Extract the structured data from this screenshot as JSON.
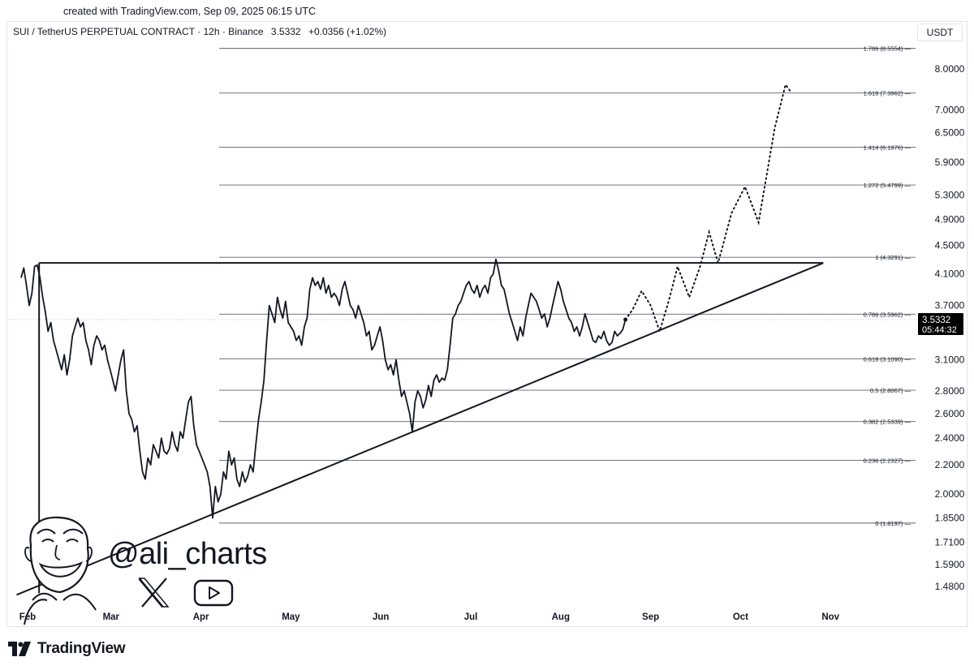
{
  "header": {
    "created_text": "created with TradingView.com, Sep 09, 2025 06:15 UTC",
    "symbol": "SUI / TetherUS PERPETUAL CONTRACT · 12h · Binance",
    "last_price": "3.5332",
    "change": "+0.0356 (+1.02%)",
    "currency": "USDT"
  },
  "watermark": {
    "handle": "@ali_charts",
    "icons": [
      "avatar-caricature",
      "x-logo-icon",
      "youtube-icon"
    ]
  },
  "footer": {
    "brand": "TradingView"
  },
  "chart_data": {
    "type": "line",
    "title": "",
    "y_scale": "log",
    "ylim": [
      1.4,
      9.1
    ],
    "x_axis_labels": [
      "Feb",
      "Mar",
      "Apr",
      "May",
      "Jun",
      "Jul",
      "Aug",
      "Sep",
      "Oct",
      "Nov"
    ],
    "y_tick_labels": [
      "8.0000",
      "7.0000",
      "6.5000",
      "5.9000",
      "5.3000",
      "4.9000",
      "4.5000",
      "4.1000",
      "3.7000",
      "3.1000",
      "2.8000",
      "2.6000",
      "2.4000",
      "2.2000",
      "2.0000",
      "1.8500",
      "1.7100",
      "1.5900",
      "1.4800"
    ],
    "price_label": {
      "value": "3.5332",
      "countdown": "05:44:32"
    },
    "fib_levels": [
      {
        "ratio": "1.786",
        "price": 8.5554,
        "label": "1.786 (8.5554)"
      },
      {
        "ratio": "1.618",
        "price": 7.3962,
        "label": "1.618 (7.3962)"
      },
      {
        "ratio": "1.414",
        "price": 6.1976,
        "label": "1.414 (6.1976)"
      },
      {
        "ratio": "1.272",
        "price": 5.4799,
        "label": "1.272 (5.4799)"
      },
      {
        "ratio": "1",
        "price": 4.3291,
        "label": "1 (4.3291)"
      },
      {
        "ratio": "0.786",
        "price": 3.5962,
        "label": "0.786 (3.5962)"
      },
      {
        "ratio": "0.618",
        "price": 3.109,
        "label": "0.618 (3.1090)"
      },
      {
        "ratio": "0.5",
        "price": 2.8067,
        "label": "0.5 (2.8067)"
      },
      {
        "ratio": "0.382",
        "price": 2.5339,
        "label": "0.382 (2.5339)"
      },
      {
        "ratio": "0.236",
        "price": 2.2327,
        "label": "0.236 (2.2327)"
      },
      {
        "ratio": "0",
        "price": 1.8197,
        "label": "0 (1.8197)"
      }
    ],
    "month_positions": {
      "Feb": 0.2,
      "Mar": 1.0,
      "Apr": 2.0,
      "May": 3.0,
      "Jun": 4.0,
      "Jul": 5.0,
      "Aug": 6.0,
      "Sep": 7.0,
      "Oct": 8.0,
      "Nov": 9.0
    },
    "price_series": [
      [
        0.0,
        4.05
      ],
      [
        0.03,
        4.18
      ],
      [
        0.06,
        3.95
      ],
      [
        0.09,
        3.7
      ],
      [
        0.12,
        3.85
      ],
      [
        0.15,
        4.2
      ],
      [
        0.18,
        4.22
      ],
      [
        0.21,
        4.05
      ],
      [
        0.24,
        3.8
      ],
      [
        0.27,
        3.62
      ],
      [
        0.3,
        3.4
      ],
      [
        0.33,
        3.5
      ],
      [
        0.36,
        3.3
      ],
      [
        0.39,
        3.2
      ],
      [
        0.42,
        3.1
      ],
      [
        0.45,
        3.0
      ],
      [
        0.48,
        3.15
      ],
      [
        0.51,
        2.95
      ],
      [
        0.54,
        3.1
      ],
      [
        0.57,
        3.35
      ],
      [
        0.6,
        3.45
      ],
      [
        0.63,
        3.55
      ],
      [
        0.66,
        3.45
      ],
      [
        0.69,
        3.5
      ],
      [
        0.72,
        3.3
      ],
      [
        0.75,
        3.2
      ],
      [
        0.78,
        3.05
      ],
      [
        0.81,
        3.25
      ],
      [
        0.84,
        3.35
      ],
      [
        0.87,
        3.3
      ],
      [
        0.9,
        3.2
      ],
      [
        0.93,
        3.25
      ],
      [
        0.96,
        3.1
      ],
      [
        0.99,
        3.0
      ],
      [
        1.02,
        2.9
      ],
      [
        1.05,
        2.8
      ],
      [
        1.08,
        2.95
      ],
      [
        1.11,
        3.1
      ],
      [
        1.14,
        3.2
      ],
      [
        1.17,
        2.8
      ],
      [
        1.2,
        2.6
      ],
      [
        1.23,
        2.55
      ],
      [
        1.26,
        2.45
      ],
      [
        1.29,
        2.5
      ],
      [
        1.32,
        2.3
      ],
      [
        1.35,
        2.15
      ],
      [
        1.38,
        2.1
      ],
      [
        1.41,
        2.25
      ],
      [
        1.44,
        2.2
      ],
      [
        1.47,
        2.35
      ],
      [
        1.5,
        2.3
      ],
      [
        1.53,
        2.25
      ],
      [
        1.56,
        2.4
      ],
      [
        1.59,
        2.3
      ],
      [
        1.62,
        2.28
      ],
      [
        1.65,
        2.32
      ],
      [
        1.68,
        2.45
      ],
      [
        1.71,
        2.35
      ],
      [
        1.74,
        2.3
      ],
      [
        1.77,
        2.45
      ],
      [
        1.8,
        2.4
      ],
      [
        1.83,
        2.55
      ],
      [
        1.86,
        2.7
      ],
      [
        1.89,
        2.75
      ],
      [
        1.92,
        2.5
      ],
      [
        1.95,
        2.35
      ],
      [
        1.98,
        2.3
      ],
      [
        2.01,
        2.25
      ],
      [
        2.04,
        2.2
      ],
      [
        2.07,
        2.15
      ],
      [
        2.1,
        2.05
      ],
      [
        2.13,
        1.85
      ],
      [
        2.16,
        2.05
      ],
      [
        2.19,
        1.95
      ],
      [
        2.22,
        2.0
      ],
      [
        2.25,
        2.15
      ],
      [
        2.28,
        2.1
      ],
      [
        2.31,
        2.3
      ],
      [
        2.34,
        2.2
      ],
      [
        2.37,
        2.25
      ],
      [
        2.4,
        2.1
      ],
      [
        2.43,
        2.05
      ],
      [
        2.46,
        2.15
      ],
      [
        2.49,
        2.08
      ],
      [
        2.52,
        2.12
      ],
      [
        2.55,
        2.2
      ],
      [
        2.58,
        2.15
      ],
      [
        2.61,
        2.35
      ],
      [
        2.64,
        2.55
      ],
      [
        2.67,
        2.7
      ],
      [
        2.7,
        2.9
      ],
      [
        2.73,
        3.3
      ],
      [
        2.76,
        3.7
      ],
      [
        2.79,
        3.6
      ],
      [
        2.82,
        3.5
      ],
      [
        2.85,
        3.8
      ],
      [
        2.88,
        3.65
      ],
      [
        2.91,
        3.55
      ],
      [
        2.94,
        3.75
      ],
      [
        2.97,
        3.5
      ],
      [
        3.0,
        3.45
      ],
      [
        3.03,
        3.4
      ],
      [
        3.06,
        3.3
      ],
      [
        3.09,
        3.35
      ],
      [
        3.12,
        3.25
      ],
      [
        3.15,
        3.45
      ],
      [
        3.18,
        3.55
      ],
      [
        3.21,
        3.9
      ],
      [
        3.24,
        4.05
      ],
      [
        3.27,
        3.95
      ],
      [
        3.3,
        4.0
      ],
      [
        3.33,
        3.9
      ],
      [
        3.36,
        4.05
      ],
      [
        3.39,
        3.85
      ],
      [
        3.42,
        3.95
      ],
      [
        3.45,
        3.8
      ],
      [
        3.48,
        3.85
      ],
      [
        3.51,
        3.8
      ],
      [
        3.54,
        3.7
      ],
      [
        3.57,
        3.9
      ],
      [
        3.6,
        4.0
      ],
      [
        3.63,
        3.85
      ],
      [
        3.66,
        3.7
      ],
      [
        3.69,
        3.65
      ],
      [
        3.72,
        3.55
      ],
      [
        3.75,
        3.7
      ],
      [
        3.78,
        3.6
      ],
      [
        3.81,
        3.5
      ],
      [
        3.84,
        3.35
      ],
      [
        3.87,
        3.4
      ],
      [
        3.9,
        3.2
      ],
      [
        3.93,
        3.25
      ],
      [
        3.96,
        3.35
      ],
      [
        3.99,
        3.45
      ],
      [
        4.02,
        3.3
      ],
      [
        4.05,
        3.1
      ],
      [
        4.08,
        3.0
      ],
      [
        4.11,
        3.05
      ],
      [
        4.14,
        2.95
      ],
      [
        4.17,
        3.1
      ],
      [
        4.2,
        2.9
      ],
      [
        4.23,
        2.75
      ],
      [
        4.26,
        2.8
      ],
      [
        4.29,
        2.7
      ],
      [
        4.32,
        2.6
      ],
      [
        4.35,
        2.45
      ],
      [
        4.38,
        2.7
      ],
      [
        4.41,
        2.8
      ],
      [
        4.44,
        2.75
      ],
      [
        4.47,
        2.65
      ],
      [
        4.5,
        2.72
      ],
      [
        4.53,
        2.85
      ],
      [
        4.56,
        2.75
      ],
      [
        4.59,
        2.9
      ],
      [
        4.62,
        2.95
      ],
      [
        4.65,
        2.88
      ],
      [
        4.68,
        2.92
      ],
      [
        4.71,
        2.9
      ],
      [
        4.74,
        3.0
      ],
      [
        4.77,
        3.25
      ],
      [
        4.8,
        3.55
      ],
      [
        4.83,
        3.6
      ],
      [
        4.86,
        3.7
      ],
      [
        4.89,
        3.75
      ],
      [
        4.92,
        3.85
      ],
      [
        4.95,
        3.95
      ],
      [
        4.98,
        4.0
      ],
      [
        5.01,
        3.9
      ],
      [
        5.04,
        3.85
      ],
      [
        5.07,
        3.95
      ],
      [
        5.1,
        3.8
      ],
      [
        5.13,
        3.9
      ],
      [
        5.16,
        3.95
      ],
      [
        5.19,
        3.85
      ],
      [
        5.22,
        4.05
      ],
      [
        5.25,
        4.1
      ],
      [
        5.28,
        4.3
      ],
      [
        5.31,
        4.15
      ],
      [
        5.34,
        3.95
      ],
      [
        5.37,
        3.9
      ],
      [
        5.4,
        3.75
      ],
      [
        5.43,
        3.6
      ],
      [
        5.46,
        3.5
      ],
      [
        5.49,
        3.4
      ],
      [
        5.52,
        3.3
      ],
      [
        5.55,
        3.45
      ],
      [
        5.58,
        3.35
      ],
      [
        5.61,
        3.55
      ],
      [
        5.64,
        3.7
      ],
      [
        5.67,
        3.85
      ],
      [
        5.7,
        3.8
      ],
      [
        5.73,
        3.75
      ],
      [
        5.76,
        3.65
      ],
      [
        5.79,
        3.55
      ],
      [
        5.82,
        3.6
      ],
      [
        5.85,
        3.45
      ],
      [
        5.88,
        3.55
      ],
      [
        5.91,
        3.7
      ],
      [
        5.94,
        3.85
      ],
      [
        5.97,
        4.0
      ],
      [
        6.0,
        3.9
      ],
      [
        6.03,
        3.75
      ],
      [
        6.06,
        3.65
      ],
      [
        6.09,
        3.55
      ],
      [
        6.12,
        3.5
      ],
      [
        6.15,
        3.4
      ],
      [
        6.18,
        3.45
      ],
      [
        6.21,
        3.35
      ],
      [
        6.24,
        3.45
      ],
      [
        6.27,
        3.6
      ],
      [
        6.3,
        3.5
      ],
      [
        6.33,
        3.4
      ],
      [
        6.36,
        3.3
      ],
      [
        6.39,
        3.28
      ],
      [
        6.42,
        3.35
      ],
      [
        6.45,
        3.32
      ],
      [
        6.48,
        3.4
      ],
      [
        6.51,
        3.3
      ],
      [
        6.54,
        3.25
      ],
      [
        6.57,
        3.28
      ],
      [
        6.6,
        3.4
      ],
      [
        6.63,
        3.35
      ],
      [
        6.66,
        3.38
      ],
      [
        6.69,
        3.42
      ],
      [
        6.72,
        3.5332
      ]
    ],
    "projection_path": [
      [
        6.72,
        3.5332
      ],
      [
        6.8,
        3.65
      ],
      [
        6.9,
        3.88
      ],
      [
        7.0,
        3.7
      ],
      [
        7.1,
        3.4
      ],
      [
        7.2,
        3.75
      ],
      [
        7.3,
        4.2
      ],
      [
        7.43,
        3.8
      ],
      [
        7.55,
        4.2
      ],
      [
        7.65,
        4.7
      ],
      [
        7.75,
        4.25
      ],
      [
        7.9,
        5.0
      ],
      [
        8.05,
        5.45
      ],
      [
        8.2,
        4.85
      ],
      [
        8.38,
        6.6
      ],
      [
        8.5,
        7.6
      ],
      [
        8.55,
        7.45
      ]
    ],
    "triangle": {
      "resistance_price": 4.25,
      "support_points": [
        [
          -0.05,
          1.44
        ],
        [
          8.92,
          4.25
        ]
      ],
      "left_vertical_x": 0.2
    }
  }
}
